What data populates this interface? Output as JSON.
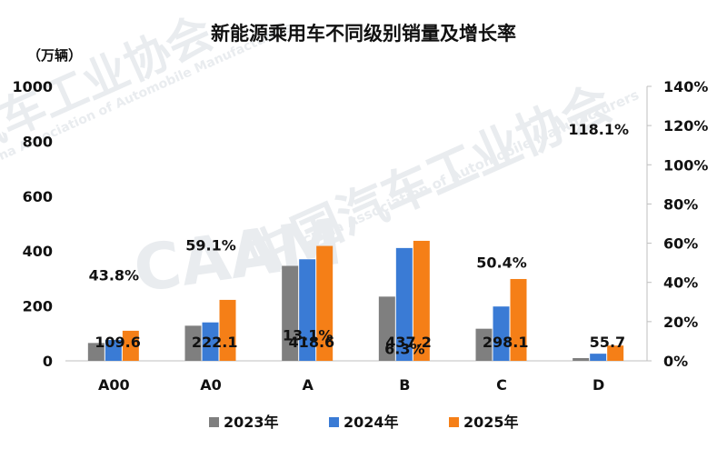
{
  "chart_data": {
    "type": "bar",
    "title": "新能源乘用车不同级别销量及增长率",
    "unit_label": "（万辆）",
    "categories": [
      "A00",
      "A0",
      "A",
      "B",
      "C",
      "D"
    ],
    "series": [
      {
        "name": "2023年",
        "color": "#7f7f7f",
        "values": [
          65,
          128,
          346,
          234,
          117,
          10
        ]
      },
      {
        "name": "2024年",
        "color": "#3a7bd5",
        "values": [
          76,
          140,
          370,
          411,
          198,
          26
        ]
      },
      {
        "name": "2025年",
        "color": "#f57f17",
        "values": [
          109.6,
          222.1,
          418.6,
          437.2,
          298.1,
          55.7
        ]
      }
    ],
    "value_labels": [
      "109.6",
      "222.1",
      "418.6",
      "437.2",
      "298.1",
      "55.7"
    ],
    "growth_rates": [
      43.8,
      59.1,
      13.1,
      6.3,
      50.4,
      118.1
    ],
    "growth_labels": [
      "43.8%",
      "59.1%",
      "13.1%",
      "6.3%",
      "50.4%",
      "118.1%"
    ],
    "y_left": {
      "min": 0,
      "max": 1000,
      "ticks": [
        "0",
        "200",
        "400",
        "600",
        "800",
        "1000"
      ]
    },
    "y_right": {
      "min": 0,
      "max": 140,
      "ticks": [
        "0%",
        "20%",
        "40%",
        "60%",
        "80%",
        "100%",
        "120%",
        "140%"
      ]
    },
    "legend_position": "bottom",
    "grid": false
  },
  "watermark": {
    "text_cn": "中国汽车工业协会",
    "text_en": "China Association of Automobile Manufacturers",
    "logo": "CAAM"
  }
}
